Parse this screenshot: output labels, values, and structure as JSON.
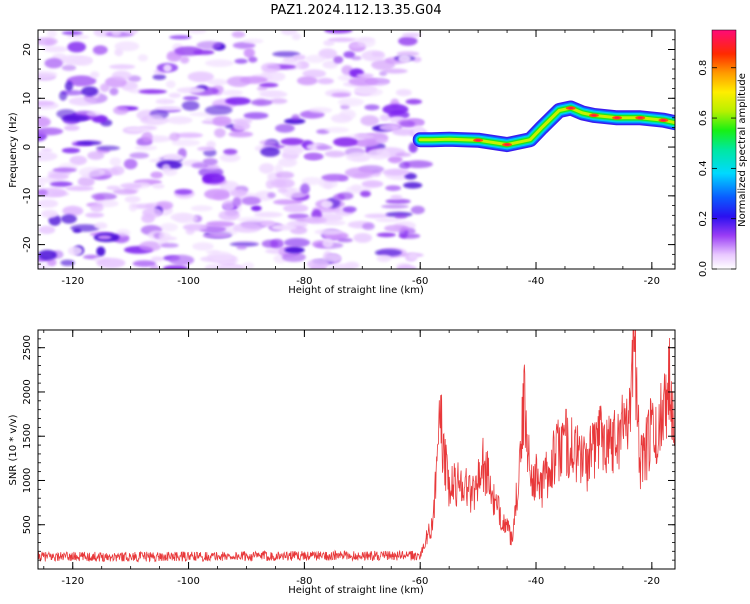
{
  "title": "PAZ1.2024.112.13.35.G04",
  "chart_data": [
    {
      "type": "heatmap",
      "xlabel": "Height of straight line (km)",
      "ylabel": "Frequency (Hz)",
      "xlim": [
        -126,
        -16
      ],
      "ylim": [
        -25,
        24
      ],
      "xticks": [
        -120,
        -100,
        -80,
        -60,
        -40,
        -20
      ],
      "yticks": [
        -20,
        -10,
        0,
        10,
        20
      ],
      "colorbar": {
        "label": "Normalized spectral amplitude",
        "range": [
          0,
          0.95
        ],
        "ticks": [
          0.0,
          0.2,
          0.4,
          0.6,
          0.8
        ]
      },
      "noise_region_x": [
        -126,
        -60
      ],
      "ridge": {
        "x": [
          -60,
          -58,
          -55,
          -50,
          -45,
          -41,
          -39,
          -36,
          -34,
          -32,
          -30,
          -26,
          -22,
          -18,
          -16
        ],
        "y": [
          1.5,
          1.5,
          1.6,
          1.4,
          0.5,
          1.5,
          4,
          7.5,
          8,
          7,
          6.5,
          6,
          6,
          5.5,
          5
        ]
      }
    },
    {
      "type": "line",
      "xlabel": "Height of straight line (km)",
      "ylabel": "SNR (10 * v/v)",
      "xlim": [
        -126,
        -16
      ],
      "ylim": [
        0,
        2700
      ],
      "xticks": [
        -120,
        -100,
        -80,
        -60,
        -40,
        -20
      ],
      "yticks": [
        500,
        1000,
        1500,
        2000,
        2500
      ],
      "series": [
        {
          "color": "#e8383a",
          "x": [
            -126,
            -100,
            -80,
            -60,
            -58,
            -57,
            -56.5,
            -56,
            -55,
            -53,
            -51,
            -49,
            -47,
            -45.5,
            -44,
            -43,
            -42,
            -41,
            -39,
            -37,
            -35,
            -33,
            -31,
            -29,
            -27,
            -25,
            -23.5,
            -23,
            -22,
            -21,
            -20,
            -19,
            -18,
            -17,
            -16
          ],
          "y": [
            140,
            140,
            150,
            150,
            500,
            1150,
            1850,
            1300,
            900,
            1000,
            850,
            1200,
            700,
            550,
            300,
            1100,
            1850,
            1100,
            950,
            1250,
            1450,
            1300,
            1200,
            1550,
            1450,
            1600,
            2050,
            2700,
            1150,
            1350,
            1600,
            1400,
            1950,
            2100,
            1900
          ]
        }
      ]
    }
  ]
}
